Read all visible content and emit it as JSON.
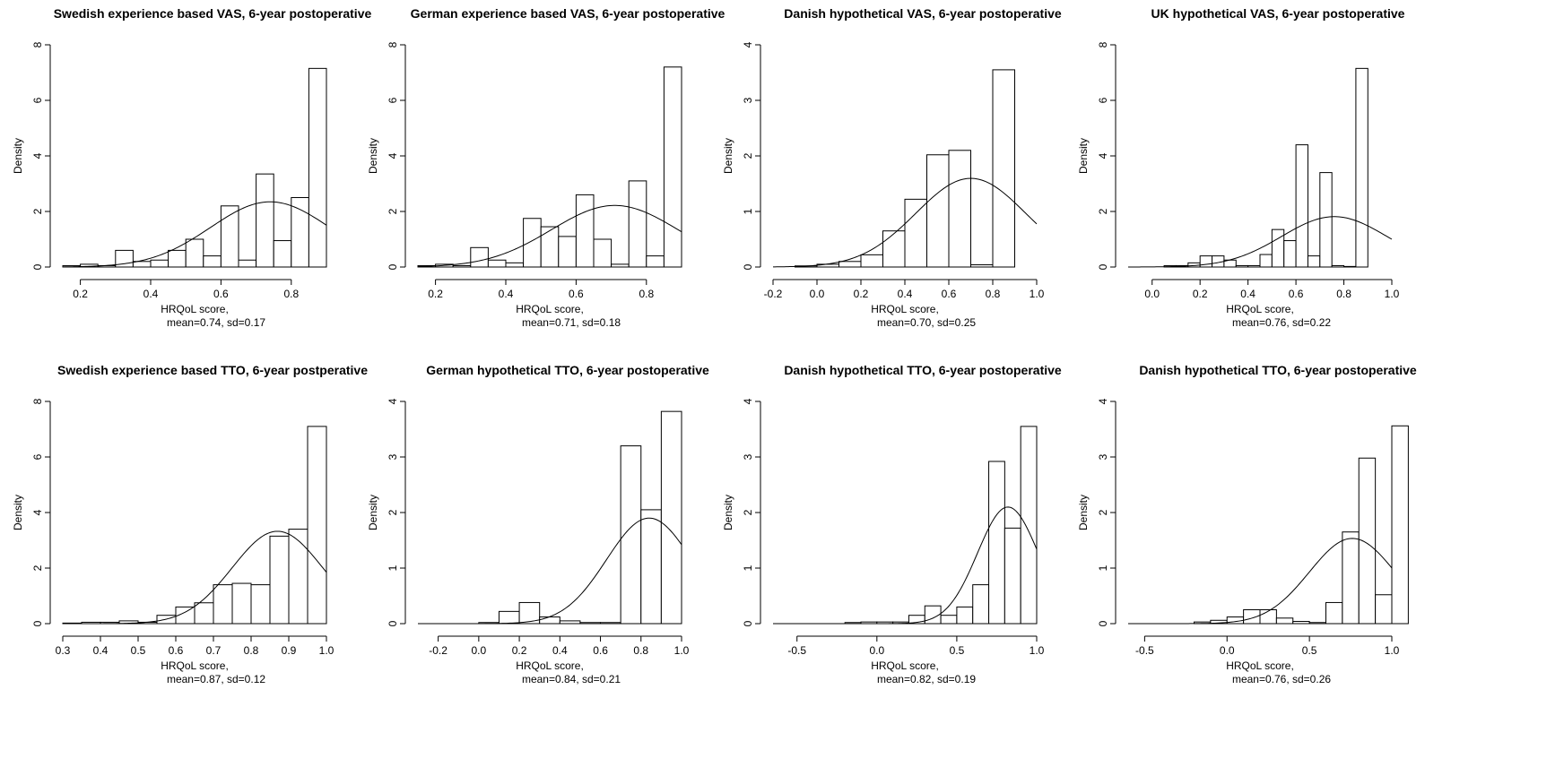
{
  "chart_data": [
    {
      "type": "bar",
      "title": "Swedish experience based VAS, 6-year postoperative",
      "xlabel": "HRQoL score,",
      "xlabel2": "mean=0.74, sd=0.17",
      "ylabel": "Density",
      "xlim": [
        0.15,
        0.9
      ],
      "ylim": [
        0,
        8
      ],
      "xticks": [
        0.2,
        0.4,
        0.6,
        0.8
      ],
      "xtick_labels": [
        "0.2",
        "0.4",
        "0.6",
        "0.8"
      ],
      "yticks": [
        0,
        2,
        4,
        6,
        8
      ],
      "ytick_labels": [
        "0",
        "2",
        "4",
        "6",
        "8"
      ],
      "bin_start": 0.15,
      "bin_width": 0.05,
      "values": [
        0.05,
        0.1,
        0.05,
        0.6,
        0.2,
        0.25,
        0.6,
        1.0,
        0.4,
        2.2,
        0.25,
        3.35,
        0.95,
        2.5,
        7.15
      ],
      "density_curve": {
        "mean": 0.74,
        "sd": 0.17
      }
    },
    {
      "type": "bar",
      "title": "German experience based VAS, 6-year postoperative",
      "xlabel": "HRQoL score,",
      "xlabel2": "mean=0.71, sd=0.18",
      "ylabel": "Density",
      "xlim": [
        0.15,
        0.9
      ],
      "ylim": [
        0,
        8
      ],
      "xticks": [
        0.2,
        0.4,
        0.6,
        0.8
      ],
      "xtick_labels": [
        "0.2",
        "0.4",
        "0.6",
        "0.8"
      ],
      "yticks": [
        0,
        2,
        4,
        6,
        8
      ],
      "ytick_labels": [
        "0",
        "2",
        "4",
        "6",
        "8"
      ],
      "bin_start": 0.15,
      "bin_width": 0.05,
      "values": [
        0.05,
        0.1,
        0.05,
        0.7,
        0.25,
        0.15,
        1.75,
        1.45,
        1.1,
        2.6,
        1.0,
        0.1,
        3.1,
        0.4,
        7.2
      ],
      "density_curve": {
        "mean": 0.71,
        "sd": 0.18
      }
    },
    {
      "type": "bar",
      "title": "Danish hypothetical VAS, 6-year postoperative",
      "xlabel": "HRQoL score,",
      "xlabel2": "mean=0.70, sd=0.25",
      "ylabel": "Density",
      "xlim": [
        -0.2,
        1.0
      ],
      "ylim": [
        0,
        4
      ],
      "xticks": [
        -0.2,
        0.0,
        0.2,
        0.4,
        0.6,
        0.8,
        1.0
      ],
      "xtick_labels": [
        "-0.2",
        "0.0",
        "0.2",
        "0.4",
        "0.6",
        "0.8",
        "1.0"
      ],
      "yticks": [
        0,
        1,
        2,
        3,
        4
      ],
      "ytick_labels": [
        "0",
        "1",
        "2",
        "3",
        "4"
      ],
      "bin_start": -0.1,
      "bin_width": 0.1,
      "values": [
        0.02,
        0.05,
        0.1,
        0.22,
        0.65,
        1.22,
        2.02,
        2.1,
        0.04,
        3.55
      ],
      "density_curve": {
        "mean": 0.7,
        "sd": 0.25
      }
    },
    {
      "type": "bar",
      "title": "UK hypothetical VAS, 6-year postoperative",
      "xlabel": "HRQoL score,",
      "xlabel2": "mean=0.76, sd=0.22",
      "ylabel": "Density",
      "xlim": [
        -0.1,
        1.0
      ],
      "ylim": [
        0,
        8
      ],
      "xticks": [
        0.0,
        0.2,
        0.4,
        0.6,
        0.8,
        1.0
      ],
      "xtick_labels": [
        "0.0",
        "0.2",
        "0.4",
        "0.6",
        "0.8",
        "1.0"
      ],
      "yticks": [
        0,
        2,
        4,
        6,
        8
      ],
      "ytick_labels": [
        "0",
        "2",
        "4",
        "6",
        "8"
      ],
      "bin_start": 0.05,
      "bin_width": 0.05,
      "values": [
        0.05,
        0.05,
        0.15,
        0.4,
        0.4,
        0.25,
        0.05,
        0.05,
        0.45,
        1.35,
        0.95,
        4.4,
        0.4,
        3.4,
        0.05,
        0.02,
        7.15
      ],
      "density_curve": {
        "mean": 0.76,
        "sd": 0.22
      }
    },
    {
      "type": "bar",
      "title": "Swedish experience based TTO, 6-year postperative",
      "xlabel": "HRQoL score,",
      "xlabel2": "mean=0.87, sd=0.12",
      "ylabel": "Density",
      "xlim": [
        0.3,
        1.0
      ],
      "ylim": [
        0,
        8
      ],
      "xticks": [
        0.3,
        0.4,
        0.5,
        0.6,
        0.7,
        0.8,
        0.9,
        1.0
      ],
      "xtick_labels": [
        "0.3",
        "0.4",
        "0.5",
        "0.6",
        "0.7",
        "0.8",
        "0.9",
        "1.0"
      ],
      "yticks": [
        0,
        2,
        4,
        6,
        8
      ],
      "ytick_labels": [
        "0",
        "2",
        "4",
        "6",
        "8"
      ],
      "bin_start": 0.3,
      "bin_width": 0.05,
      "values": [
        0.02,
        0.05,
        0.05,
        0.1,
        0.05,
        0.3,
        0.6,
        0.75,
        1.4,
        1.45,
        1.4,
        3.15,
        3.4,
        7.1
      ],
      "density_curve": {
        "mean": 0.87,
        "sd": 0.12
      }
    },
    {
      "type": "bar",
      "title": "German hypothetical TTO, 6-year postoperative",
      "xlabel": "HRQoL score,",
      "xlabel2": "mean=0.84, sd=0.21",
      "ylabel": "Density",
      "xlim": [
        -0.3,
        1.0
      ],
      "ylim": [
        0,
        4
      ],
      "xticks": [
        -0.2,
        0.0,
        0.2,
        0.4,
        0.6,
        0.8,
        1.0
      ],
      "xtick_labels": [
        "-0.2",
        "0.0",
        "0.2",
        "0.4",
        "0.6",
        "0.8",
        "1.0"
      ],
      "yticks": [
        0,
        1,
        2,
        3,
        4
      ],
      "ytick_labels": [
        "0",
        "1",
        "2",
        "3",
        "4"
      ],
      "bin_start": 0.0,
      "bin_width": 0.1,
      "values": [
        0.02,
        0.22,
        0.38,
        0.12,
        0.05,
        0.02,
        0.02,
        3.2,
        2.05,
        3.82
      ],
      "density_curve": {
        "mean": 0.84,
        "sd": 0.21
      }
    },
    {
      "type": "bar",
      "title": "Danish hypothetical TTO, 6-year postoperative",
      "xlabel": "HRQoL score,",
      "xlabel2": "mean=0.82, sd=0.19",
      "ylabel": "Density",
      "xlim": [
        -0.65,
        1.0
      ],
      "ylim": [
        0,
        4
      ],
      "xticks": [
        -0.5,
        0.0,
        0.5,
        1.0
      ],
      "xtick_labels": [
        "-0.5",
        "0.0",
        "0.5",
        "1.0"
      ],
      "yticks": [
        0,
        1,
        2,
        3,
        4
      ],
      "ytick_labels": [
        "0",
        "1",
        "2",
        "3",
        "4"
      ],
      "bin_start": -0.2,
      "bin_width": 0.1,
      "values": [
        0.02,
        0.03,
        0.03,
        0.03,
        0.15,
        0.32,
        0.15,
        0.3,
        0.7,
        2.92,
        1.72,
        3.55
      ],
      "density_curve": {
        "mean": 0.82,
        "sd": 0.19
      }
    },
    {
      "type": "bar",
      "title": "Danish hypothetical TTO, 6-year postoperative",
      "xlabel": "HRQoL score,",
      "xlabel2": "mean=0.76, sd=0.26",
      "ylabel": "Density",
      "xlim": [
        -0.6,
        1.0
      ],
      "ylim": [
        0,
        4
      ],
      "xticks": [
        -0.5,
        0.0,
        0.5,
        1.0
      ],
      "xtick_labels": [
        "-0.5",
        "0.0",
        "0.5",
        "1.0"
      ],
      "yticks": [
        0,
        1,
        2,
        3,
        4
      ],
      "ytick_labels": [
        "0",
        "1",
        "2",
        "3",
        "4"
      ],
      "bin_start": -0.2,
      "bin_width": 0.1,
      "values": [
        0.03,
        0.06,
        0.12,
        0.25,
        0.25,
        0.1,
        0.04,
        0.02,
        0.38,
        1.65,
        2.98,
        0.52,
        3.56
      ],
      "density_curve": {
        "mean": 0.76,
        "sd": 0.26
      }
    }
  ]
}
